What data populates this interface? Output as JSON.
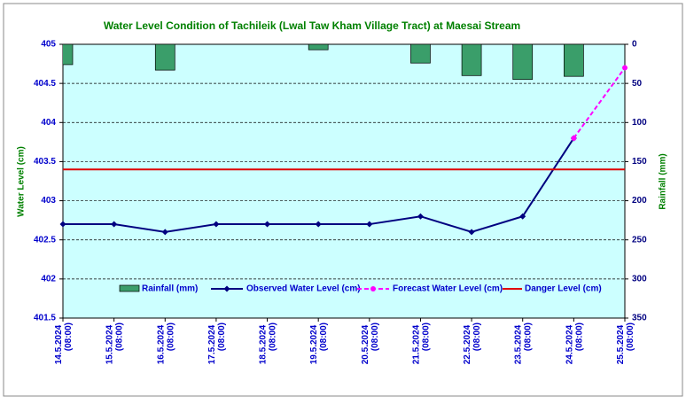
{
  "chart_data": {
    "type": "line",
    "title": "Water Level Condition of Tachileik (Lwal Taw Kham Village Tract) at Maesai Stream",
    "y_label": "Water Level (cm)",
    "y2_label": "Rainfall (mm)",
    "categories": [
      "14.5.2024 (08:00)",
      "15.5.2024 (08:00)",
      "16.5.2024 (08:00)",
      "17.5.2024 (08:00)",
      "18.5.2024 (08:00)",
      "19.5.2024 (08:00)",
      "20.5.2024 (08:00)",
      "21.5.2024 (08:00)",
      "22.5.2024 (08:00)",
      "23.5.2024 (08:00)",
      "24.5.2024 (08:00)",
      "25.5.2024 (08:00)"
    ],
    "series": [
      {
        "name": "Rainfall (mm)",
        "kind": "bar",
        "axis": "y2",
        "color": "#3a9e6a",
        "values": [
          26,
          0,
          33,
          0,
          0,
          7,
          0,
          24,
          40,
          45,
          41,
          0
        ]
      },
      {
        "name": "Observed Water Level (cm)",
        "kind": "line",
        "color": "#000080",
        "values": [
          402.7,
          402.7,
          402.6,
          402.7,
          402.7,
          402.7,
          402.7,
          402.8,
          402.6,
          402.8,
          403.8,
          null
        ]
      },
      {
        "name": "Forecast Water Level (cm)",
        "kind": "dashed",
        "color": "#ff00ff",
        "values": [
          null,
          null,
          null,
          null,
          null,
          null,
          null,
          null,
          null,
          null,
          403.8,
          404.7
        ]
      },
      {
        "name": "Danger Level (cm)",
        "kind": "level",
        "color": "#e00000",
        "values": [
          403.4,
          403.4,
          403.4,
          403.4,
          403.4,
          403.4,
          403.4,
          403.4,
          403.4,
          403.4,
          403.4,
          403.4
        ]
      }
    ],
    "ylim": [
      401.5,
      405
    ],
    "yticks": [
      401.5,
      402,
      402.5,
      403,
      403.5,
      404,
      404.5,
      405
    ],
    "y2lim": [
      350,
      0
    ],
    "y2ticks": [
      0,
      50,
      100,
      150,
      200,
      250,
      300,
      350
    ],
    "grid": true,
    "legend": "bottom"
  }
}
